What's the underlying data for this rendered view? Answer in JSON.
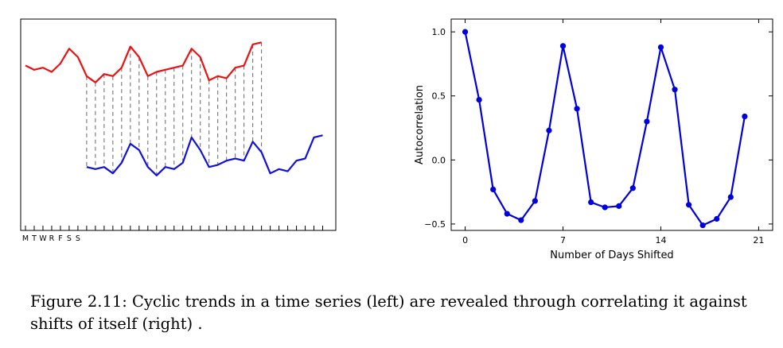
{
  "chart_data": [
    {
      "type": "line",
      "x_tick_labels": [
        "M",
        "T",
        "W",
        "R",
        "F",
        "S",
        "S"
      ],
      "original_series": [
        0.78,
        0.76,
        0.77,
        0.75,
        0.79,
        0.86,
        0.82,
        0.73,
        0.7,
        0.74,
        0.73,
        0.77,
        0.87,
        0.82,
        0.73,
        0.75,
        0.76,
        0.77,
        0.78,
        0.86,
        0.82,
        0.71,
        0.73,
        0.72,
        0.77,
        0.78,
        0.88,
        0.89
      ],
      "shifted_series": [
        0.3,
        0.29,
        0.3,
        0.27,
        0.32,
        0.41,
        0.38,
        0.3,
        0.26,
        0.3,
        0.29,
        0.32,
        0.44,
        0.38,
        0.3,
        0.31,
        0.33,
        0.34,
        0.33,
        0.42,
        0.37,
        0.27,
        0.29,
        0.28,
        0.33,
        0.34,
        0.44,
        0.45
      ],
      "shift": 7,
      "colors": {
        "original": "#ee1111",
        "shifted": "#1111dd",
        "connector": "#666666"
      }
    },
    {
      "type": "line",
      "xlabel": "Number of Days Shifted",
      "ylabel": "Autocorrelation",
      "xlim": [
        -1,
        22
      ],
      "ylim": [
        -0.55,
        1.1
      ],
      "x_ticks": [
        0,
        7,
        14,
        21
      ],
      "y_ticks": [
        1.0,
        0.5,
        0.0,
        -0.5
      ],
      "y_tick_labels": [
        "1.0",
        "0.5",
        "0.0",
        "−0.5"
      ],
      "x": [
        0,
        1,
        2,
        3,
        4,
        5,
        6,
        7,
        8,
        9,
        10,
        11,
        12,
        13,
        14,
        15,
        16,
        17,
        18,
        19,
        20
      ],
      "values": [
        1.0,
        0.47,
        -0.23,
        -0.42,
        -0.47,
        -0.32,
        0.23,
        0.89,
        0.4,
        -0.33,
        -0.37,
        -0.36,
        -0.22,
        0.3,
        0.88,
        0.55,
        -0.35,
        -0.51,
        -0.46,
        -0.29,
        0.34
      ],
      "color": "#0000dd"
    }
  ],
  "caption": "Figure 2.11: Cyclic trends in a time series (left) are revealed through correlating it against shifts of itself (right) ."
}
